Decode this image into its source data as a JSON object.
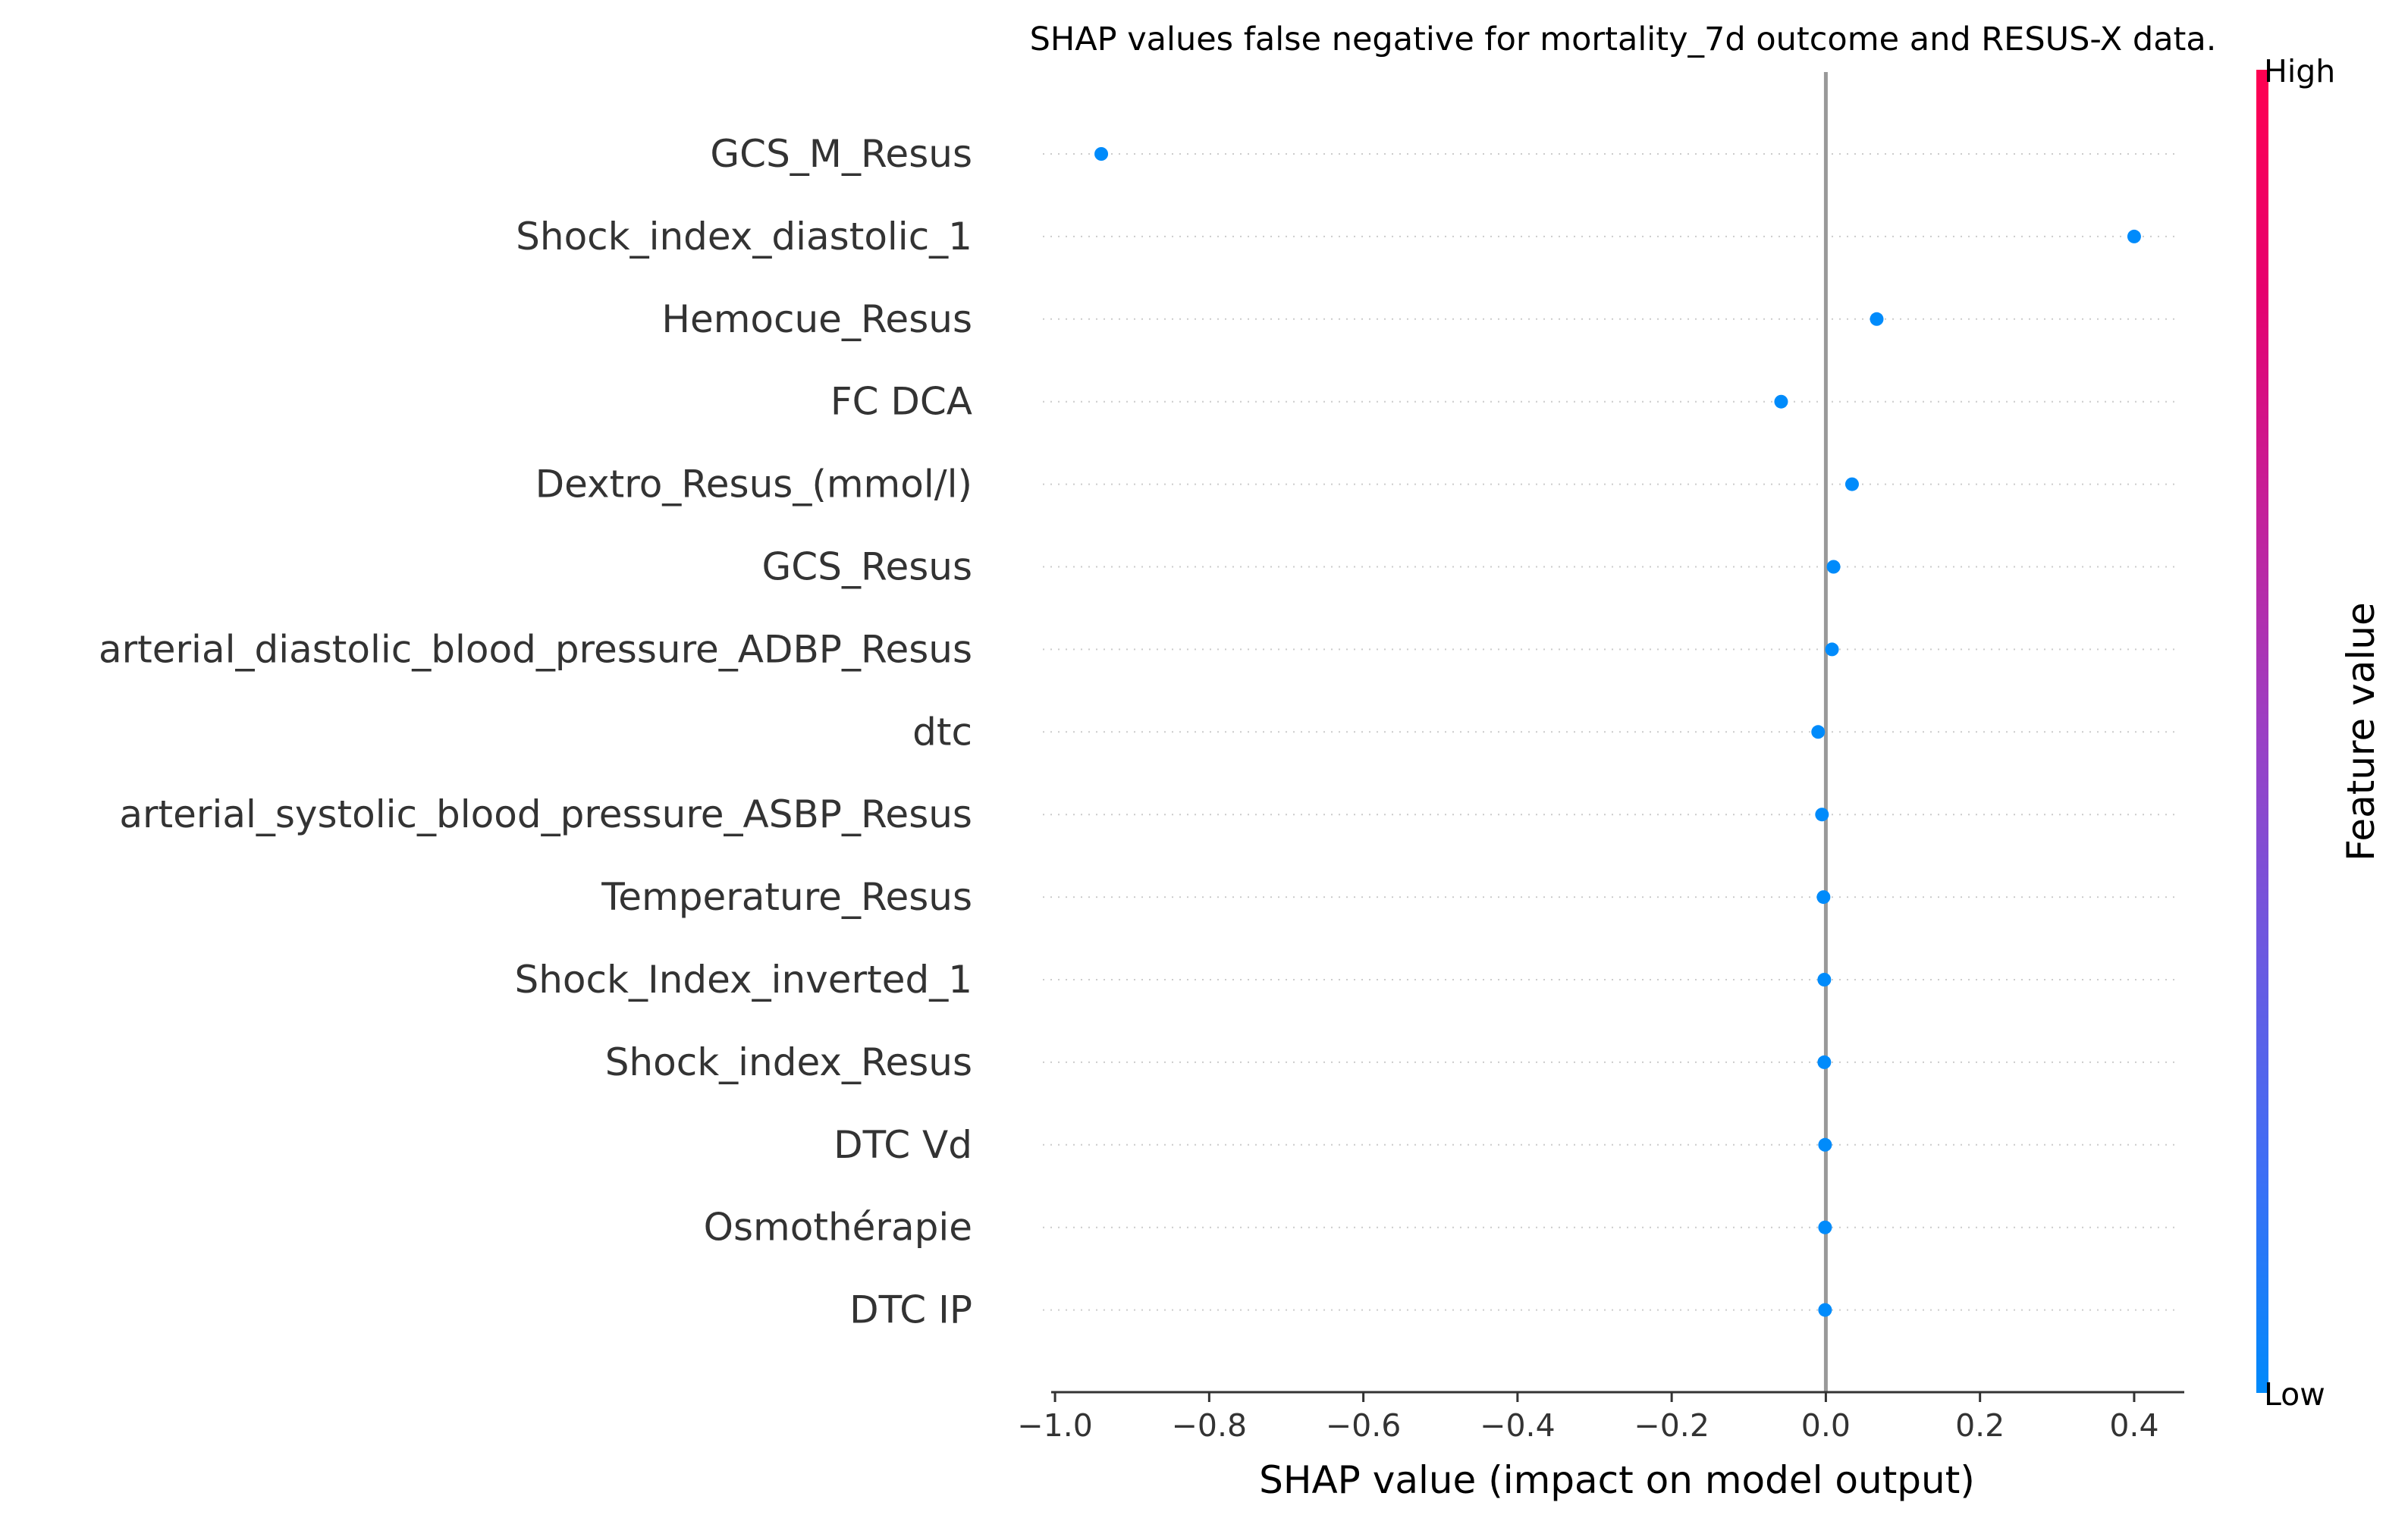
{
  "chart_data": {
    "type": "scatter",
    "title": "SHAP values false negative for mortality_7d outcome and RESUS-X data.",
    "xlabel": "SHAP value (impact on model output)",
    "xlim": [
      -1.005,
      0.465
    ],
    "xticks": [
      -1.0,
      -0.8,
      -0.6,
      -0.4,
      -0.2,
      0.0,
      0.2,
      0.4
    ],
    "xtick_labels": [
      "−1.0",
      "−0.8",
      "−0.6",
      "−0.4",
      "−0.2",
      "0.0",
      "0.2",
      "0.4"
    ],
    "features": [
      {
        "name": "GCS_M_Resus",
        "shap": -0.94
      },
      {
        "name": "Shock_index_diastolic_1",
        "shap": 0.4
      },
      {
        "name": "Hemocue_Resus",
        "shap": 0.066
      },
      {
        "name": "FC  DCA",
        "shap": -0.058
      },
      {
        "name": "Dextro_Resus_(mmol/l)",
        "shap": 0.034
      },
      {
        "name": "GCS_Resus",
        "shap": 0.01
      },
      {
        "name": "arterial_diastolic_blood_pressure_ADBP_Resus",
        "shap": 0.008
      },
      {
        "name": "dtc",
        "shap": -0.01
      },
      {
        "name": "arterial_systolic_blood_pressure_ASBP_Resus",
        "shap": -0.005
      },
      {
        "name": "Temperature_Resus",
        "shap": -0.003
      },
      {
        "name": "Shock_Index_inverted_1",
        "shap": -0.002
      },
      {
        "name": "Shock_index_Resus",
        "shap": -0.002
      },
      {
        "name": "DTC Vd",
        "shap": -0.001
      },
      {
        "name": "Osmothérapie",
        "shap": -0.001
      },
      {
        "name": "DTC IP",
        "shap": -0.001
      }
    ],
    "point_color": "#008bfb",
    "zero_line_color": "#999999",
    "grid": "dotted horizontal",
    "colorbar": {
      "label": "Feature value",
      "high_label": "High",
      "low_label": "Low",
      "colors": [
        "#008afb",
        "#3d6ef5",
        "#6c58e0",
        "#9b3fc4",
        "#c4209a",
        "#e6006e",
        "#ff0051"
      ]
    }
  }
}
